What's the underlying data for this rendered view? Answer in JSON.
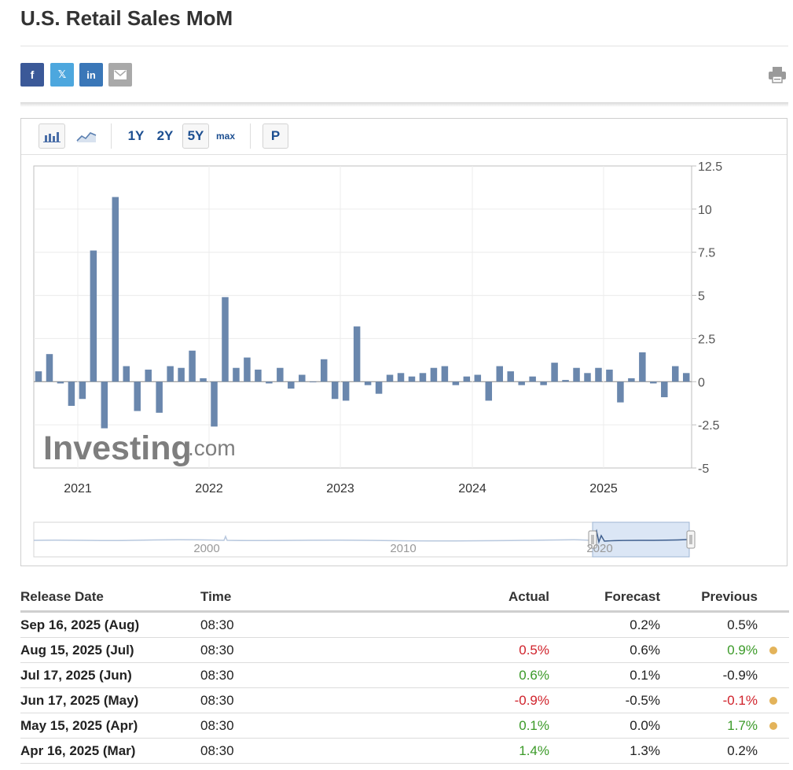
{
  "title": "U.S. Retail Sales MoM",
  "share": {
    "facebook": "f",
    "twitter": "𝕏",
    "linkedin": "in"
  },
  "toolbar": {
    "range_1y": "1Y",
    "range_2y": "2Y",
    "range_5y": "5Y",
    "range_max": "max",
    "p_label": "P"
  },
  "watermark": {
    "main": "Investing",
    "suffix": ".com"
  },
  "chart_data": {
    "type": "bar",
    "title": "",
    "xlabel": "",
    "ylabel": "",
    "ylim": [
      -5,
      12.5
    ],
    "y_ticks": [
      "12.5",
      "10",
      "7.5",
      "5",
      "2.5",
      "0",
      "-2.5",
      "-5"
    ],
    "x_ticks": [
      "2021",
      "2022",
      "2023",
      "2024",
      "2025"
    ],
    "grid": true,
    "bar_color": "#6a87ad",
    "series": [
      {
        "values": [
          0.6,
          1.6,
          -0.1,
          -1.4,
          -1.0,
          7.6,
          -2.7,
          10.7,
          0.9,
          -1.7,
          0.7,
          -1.8,
          0.9,
          0.8,
          1.8,
          0.2,
          -2.6,
          4.9,
          0.8,
          1.4,
          0.7,
          -0.1,
          0.8,
          -0.4,
          0.4,
          0.0,
          1.3,
          -1.0,
          -1.1,
          3.2,
          -0.2,
          -0.7,
          0.4,
          0.5,
          0.3,
          0.5,
          0.8,
          0.9,
          -0.2,
          0.3,
          0.4,
          -1.1,
          0.9,
          0.6,
          -0.2,
          0.3,
          -0.2,
          1.1,
          0.1,
          0.8,
          0.5,
          0.8,
          0.7,
          -1.2,
          0.2,
          1.7,
          -0.1,
          -0.9,
          0.9,
          0.5
        ]
      }
    ],
    "navigator": {
      "x_ticks": [
        "2000",
        "2010",
        "2020"
      ]
    }
  },
  "table": {
    "headers": [
      "Release Date",
      "Time",
      "Actual",
      "Forecast",
      "Previous"
    ],
    "rows": [
      {
        "date": "Sep 16, 2025 (Aug)",
        "time": "08:30",
        "actual": "",
        "forecast": "0.2%",
        "previous": "0.5%",
        "actual_color": "",
        "previous_color": "",
        "revised": false
      },
      {
        "date": "Aug 15, 2025 (Jul)",
        "time": "08:30",
        "actual": "0.5%",
        "forecast": "0.6%",
        "previous": "0.9%",
        "actual_color": "red",
        "previous_color": "green",
        "revised": true
      },
      {
        "date": "Jul 17, 2025 (Jun)",
        "time": "08:30",
        "actual": "0.6%",
        "forecast": "0.1%",
        "previous": "-0.9%",
        "actual_color": "green",
        "previous_color": "",
        "revised": false
      },
      {
        "date": "Jun 17, 2025 (May)",
        "time": "08:30",
        "actual": "-0.9%",
        "forecast": "-0.5%",
        "previous": "-0.1%",
        "actual_color": "red",
        "previous_color": "red",
        "revised": true
      },
      {
        "date": "May 15, 2025 (Apr)",
        "time": "08:30",
        "actual": "0.1%",
        "forecast": "0.0%",
        "previous": "1.7%",
        "actual_color": "green",
        "previous_color": "green",
        "revised": true
      },
      {
        "date": "Apr 16, 2025 (Mar)",
        "time": "08:30",
        "actual": "1.4%",
        "forecast": "1.3%",
        "previous": "0.2%",
        "actual_color": "green",
        "previous_color": "",
        "revised": false
      }
    ]
  }
}
